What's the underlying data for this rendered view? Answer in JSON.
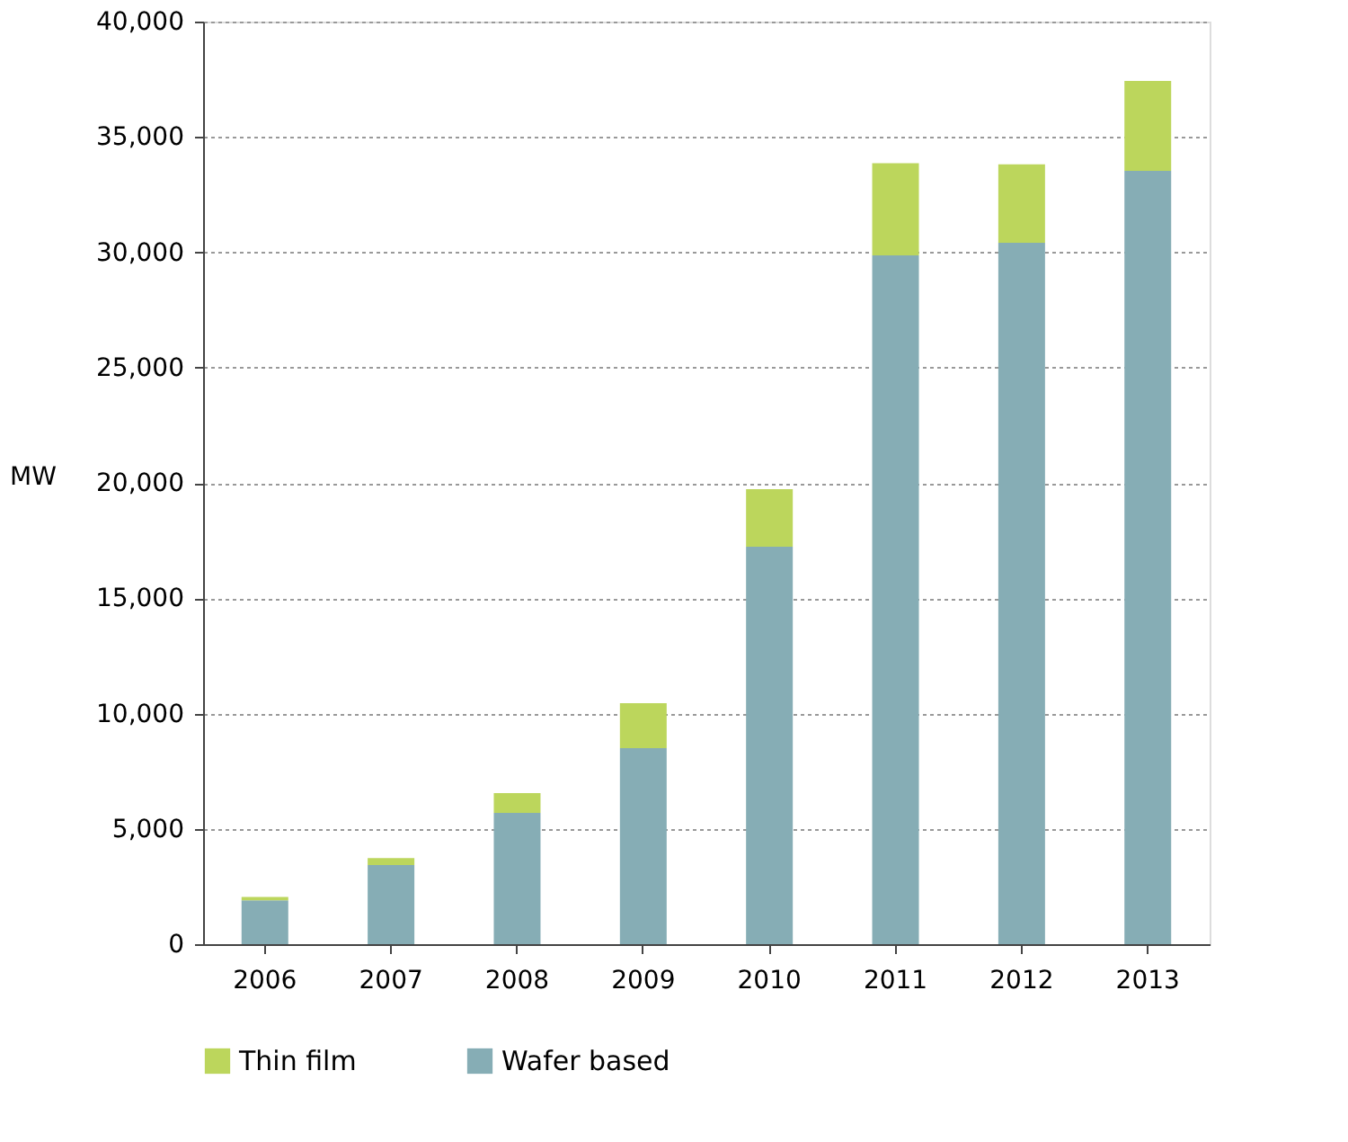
{
  "chart_data": {
    "type": "bar",
    "stacked": true,
    "ylabel": "MW",
    "categories": [
      "2006",
      "2007",
      "2008",
      "2009",
      "2010",
      "2011",
      "2012",
      "2013"
    ],
    "series": [
      {
        "name": "Wafer based",
        "color": "#86adb5",
        "values": [
          1900,
          3430,
          5690,
          8500,
          17230,
          29860,
          30410,
          33530
        ]
      },
      {
        "name": "Thin film",
        "color": "#bcd65c",
        "values": [
          150,
          300,
          860,
          1950,
          2500,
          4000,
          3400,
          3900
        ]
      }
    ],
    "ylim": [
      0,
      40000
    ],
    "yticks": [
      0,
      {
        "value": 5000,
        "label": "5,000"
      },
      {
        "value": 10000,
        "label": "10,000"
      },
      {
        "value": 15000,
        "label": "15,000"
      },
      {
        "value": 20000,
        "label": "20,000"
      },
      {
        "value": 25000,
        "label": "25,000"
      },
      {
        "value": 30000,
        "label": "30,000"
      },
      {
        "value": 35000,
        "label": "35,000"
      },
      {
        "value": 40000,
        "label": "40,000"
      }
    ],
    "grid": "y",
    "legend": "bottom"
  }
}
